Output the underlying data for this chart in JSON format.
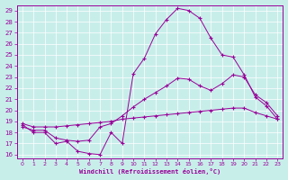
{
  "xlabel": "Windchill (Refroidissement éolien,°C)",
  "background_color": "#c8eeea",
  "line_color": "#990099",
  "xlim": [
    -0.5,
    23.5
  ],
  "ylim": [
    15.7,
    29.5
  ],
  "yticks": [
    16,
    17,
    18,
    19,
    20,
    21,
    22,
    23,
    24,
    25,
    26,
    27,
    28,
    29
  ],
  "xticks": [
    0,
    1,
    2,
    3,
    4,
    5,
    6,
    7,
    8,
    9,
    10,
    11,
    12,
    13,
    14,
    15,
    16,
    17,
    18,
    19,
    20,
    21,
    22,
    23
  ],
  "line1_x": [
    0,
    1,
    2,
    3,
    4,
    5,
    6,
    7,
    8,
    9,
    10,
    11,
    12,
    13,
    14,
    15,
    16,
    17,
    18,
    19,
    20,
    21,
    22,
    23
  ],
  "line1_y": [
    18.7,
    18.0,
    18.0,
    17.0,
    17.2,
    16.3,
    16.1,
    16.0,
    18.0,
    17.0,
    23.3,
    24.7,
    26.9,
    28.2,
    29.2,
    29.0,
    28.3,
    26.5,
    25.0,
    24.8,
    23.2,
    21.2,
    20.4,
    19.2
  ],
  "line2_x": [
    0,
    1,
    2,
    3,
    4,
    5,
    6,
    7,
    8,
    9,
    10,
    11,
    12,
    13,
    14,
    15,
    16,
    17,
    18,
    19,
    20,
    21,
    22,
    23
  ],
  "line2_y": [
    18.5,
    18.2,
    18.2,
    17.5,
    17.3,
    17.2,
    17.3,
    18.5,
    18.8,
    19.5,
    20.3,
    21.0,
    21.6,
    22.2,
    22.9,
    22.8,
    22.2,
    21.8,
    22.4,
    23.2,
    23.0,
    21.4,
    20.7,
    19.5
  ],
  "line3_x": [
    0,
    1,
    2,
    3,
    4,
    5,
    6,
    7,
    8,
    9,
    10,
    11,
    12,
    13,
    14,
    15,
    16,
    17,
    18,
    19,
    20,
    21,
    22,
    23
  ],
  "line3_y": [
    18.8,
    18.5,
    18.5,
    18.5,
    18.6,
    18.7,
    18.8,
    18.9,
    19.0,
    19.2,
    19.3,
    19.4,
    19.5,
    19.6,
    19.7,
    19.8,
    19.9,
    20.0,
    20.1,
    20.2,
    20.2,
    19.8,
    19.5,
    19.2
  ]
}
